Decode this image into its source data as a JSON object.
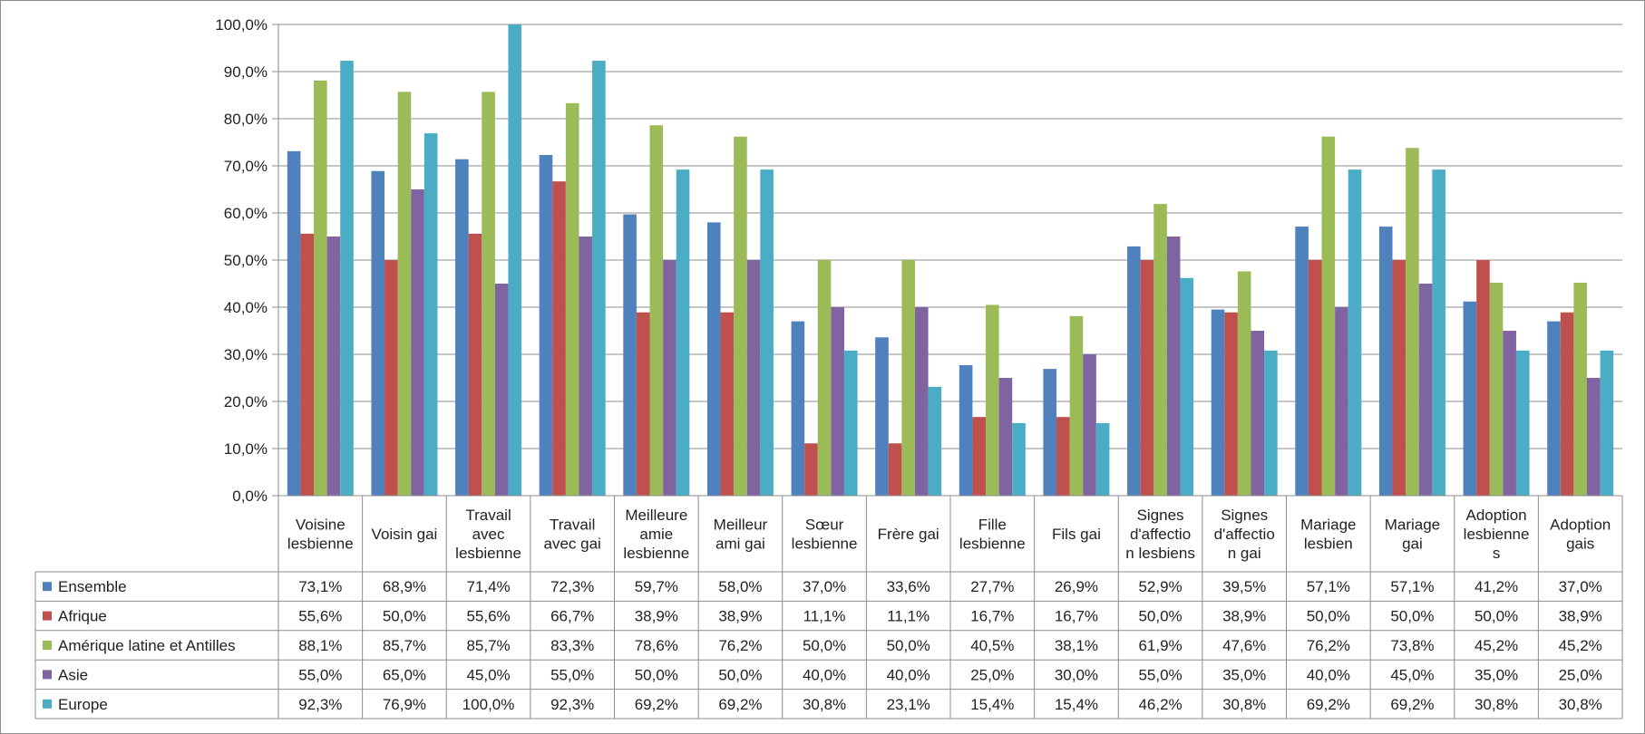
{
  "chart_data": {
    "type": "bar",
    "ylim": [
      0,
      100
    ],
    "y_ticks": [
      "0,0%",
      "10,0%",
      "20,0%",
      "30,0%",
      "40,0%",
      "50,0%",
      "60,0%",
      "70,0%",
      "80,0%",
      "90,0%",
      "100,0%"
    ],
    "grid": true,
    "legend_placement": "data-table",
    "categories": [
      [
        "Voisine",
        "lesbienne"
      ],
      [
        "Voisin gai"
      ],
      [
        "Travail",
        "avec",
        "lesbienne"
      ],
      [
        "Travail",
        "avec gai"
      ],
      [
        "Meilleure",
        "amie",
        "lesbienne"
      ],
      [
        "Meilleur",
        "ami gai"
      ],
      [
        "Sœur",
        "lesbienne"
      ],
      [
        "Frère gai"
      ],
      [
        "Fille",
        "lesbienne"
      ],
      [
        "Fils gai"
      ],
      [
        "Signes",
        "d'affectio",
        "n lesbiens"
      ],
      [
        "Signes",
        "d'affectio",
        "n gai"
      ],
      [
        "Mariage",
        "lesbien"
      ],
      [
        "Mariage",
        "gai"
      ],
      [
        "Adoption",
        "lesbienne",
        "s"
      ],
      [
        "Adoption",
        "gais"
      ]
    ],
    "series": [
      {
        "name": "Ensemble",
        "color": "#4F81BD",
        "values": [
          73.1,
          68.9,
          71.4,
          72.3,
          59.7,
          58.0,
          37.0,
          33.6,
          27.7,
          26.9,
          52.9,
          39.5,
          57.1,
          57.1,
          41.2,
          37.0
        ],
        "labels": [
          "73,1%",
          "68,9%",
          "71,4%",
          "72,3%",
          "59,7%",
          "58,0%",
          "37,0%",
          "33,6%",
          "27,7%",
          "26,9%",
          "52,9%",
          "39,5%",
          "57,1%",
          "57,1%",
          "41,2%",
          "37,0%"
        ]
      },
      {
        "name": "Afrique",
        "color": "#C0504D",
        "values": [
          55.6,
          50.0,
          55.6,
          66.7,
          38.9,
          38.9,
          11.1,
          11.1,
          16.7,
          16.7,
          50.0,
          38.9,
          50.0,
          50.0,
          50.0,
          38.9
        ],
        "labels": [
          "55,6%",
          "50,0%",
          "55,6%",
          "66,7%",
          "38,9%",
          "38,9%",
          "11,1%",
          "11,1%",
          "16,7%",
          "16,7%",
          "50,0%",
          "38,9%",
          "50,0%",
          "50,0%",
          "50,0%",
          "38,9%"
        ]
      },
      {
        "name": "Amérique latine et Antilles",
        "color": "#9BBB59",
        "values": [
          88.1,
          85.7,
          85.7,
          83.3,
          78.6,
          76.2,
          50.0,
          50.0,
          40.5,
          38.1,
          61.9,
          47.6,
          76.2,
          73.8,
          45.2,
          45.2
        ],
        "labels": [
          "88,1%",
          "85,7%",
          "85,7%",
          "83,3%",
          "78,6%",
          "76,2%",
          "50,0%",
          "50,0%",
          "40,5%",
          "38,1%",
          "61,9%",
          "47,6%",
          "76,2%",
          "73,8%",
          "45,2%",
          "45,2%"
        ]
      },
      {
        "name": "Asie",
        "color": "#8064A2",
        "values": [
          55.0,
          65.0,
          45.0,
          55.0,
          50.0,
          50.0,
          40.0,
          40.0,
          25.0,
          30.0,
          55.0,
          35.0,
          40.0,
          45.0,
          35.0,
          25.0
        ],
        "labels": [
          "55,0%",
          "65,0%",
          "45,0%",
          "55,0%",
          "50,0%",
          "50,0%",
          "40,0%",
          "40,0%",
          "25,0%",
          "30,0%",
          "55,0%",
          "35,0%",
          "40,0%",
          "45,0%",
          "35,0%",
          "25,0%"
        ]
      },
      {
        "name": "Europe",
        "color": "#4BACC6",
        "values": [
          92.3,
          76.9,
          100.0,
          92.3,
          69.2,
          69.2,
          30.8,
          23.1,
          15.4,
          15.4,
          46.2,
          30.8,
          69.2,
          69.2,
          30.8,
          30.8
        ],
        "labels": [
          "92,3%",
          "76,9%",
          "100,0%",
          "92,3%",
          "69,2%",
          "69,2%",
          "30,8%",
          "23,1%",
          "15,4%",
          "15,4%",
          "46,2%",
          "30,8%",
          "69,2%",
          "69,2%",
          "30,8%",
          "30,8%"
        ]
      }
    ]
  }
}
